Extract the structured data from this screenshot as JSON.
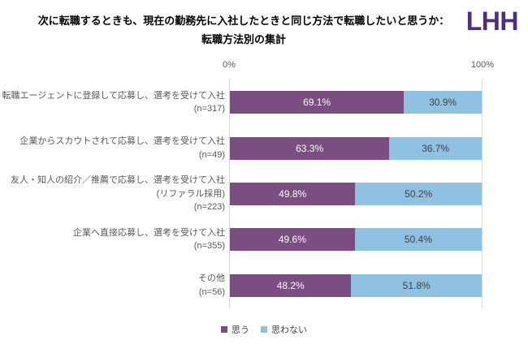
{
  "header": {
    "title_line1": "次に転職するときも、現在の勤務先に入社したときと同じ方法で転職したいと思うか：",
    "title_line2": "転職方法別の集計",
    "logo_text": "LHH",
    "logo_color": "#4F2D7F"
  },
  "axis": {
    "left_label": "0%",
    "right_label": "100%"
  },
  "legend": {
    "items": [
      {
        "label": "思う",
        "color": "#7A4E80"
      },
      {
        "label": "思わない",
        "color": "#8FC1E3"
      }
    ]
  },
  "series_styles": {
    "think": {
      "color": "#7A4E80",
      "text_color": "#FFFFFF"
    },
    "not_think": {
      "color": "#8FC1E3",
      "text_color": "#404040"
    }
  },
  "rows": [
    {
      "label_lines": [
        "転職エージェントに登録して応募し、選考を受けて入社",
        "(n=317)"
      ],
      "think_pct": 69.1,
      "think_label": "69.1%",
      "not_pct": 30.9,
      "not_label": "30.9%"
    },
    {
      "label_lines": [
        "企業からスカウトされて応募し、選考を受けて入社",
        "(n=49)"
      ],
      "think_pct": 63.3,
      "think_label": "63.3%",
      "not_pct": 36.7,
      "not_label": "36.7%"
    },
    {
      "label_lines": [
        "友人・知人の紹介／推薦で応募し、選考を受けて入社",
        "(リファラル採用)",
        "(n=223)"
      ],
      "think_pct": 49.8,
      "think_label": "49.8%",
      "not_pct": 50.2,
      "not_label": "50.2%"
    },
    {
      "label_lines": [
        "企業へ直接応募し、選考を受けて入社",
        "(n=355)"
      ],
      "think_pct": 49.6,
      "think_label": "49.6%",
      "not_pct": 50.4,
      "not_label": "50.4%"
    },
    {
      "label_lines": [
        "その他",
        "(n=56)"
      ],
      "think_pct": 48.2,
      "think_label": "48.2%",
      "not_pct": 51.8,
      "not_label": "51.8%"
    }
  ],
  "chart_data": {
    "type": "bar",
    "orientation": "horizontal",
    "stacked": true,
    "title": "次に転職するときも、現在の勤務先に入社したときと同じ方法で転職したいと思うか：転職方法別の集計",
    "categories": [
      "転職エージェントに登録して応募し、選考を受けて入社 (n=317)",
      "企業からスカウトされて応募し、選考を受けて入社 (n=49)",
      "友人・知人の紹介／推薦で応募し、選考を受けて入社（リファラル採用） (n=223)",
      "企業へ直接応募し、選考を受けて入社 (n=355)",
      "その他 (n=56)"
    ],
    "series": [
      {
        "name": "思う",
        "color": "#7A4E80",
        "values": [
          69.1,
          63.3,
          49.8,
          49.6,
          48.2
        ]
      },
      {
        "name": "思わない",
        "color": "#8FC1E3",
        "values": [
          30.9,
          36.7,
          50.2,
          50.4,
          51.8
        ]
      }
    ],
    "xlim": [
      0,
      100
    ],
    "x_tick_labels": [
      "0%",
      "100%"
    ],
    "grid": false,
    "legend_position": "bottom",
    "value_label_format": "percent_one_decimal"
  }
}
